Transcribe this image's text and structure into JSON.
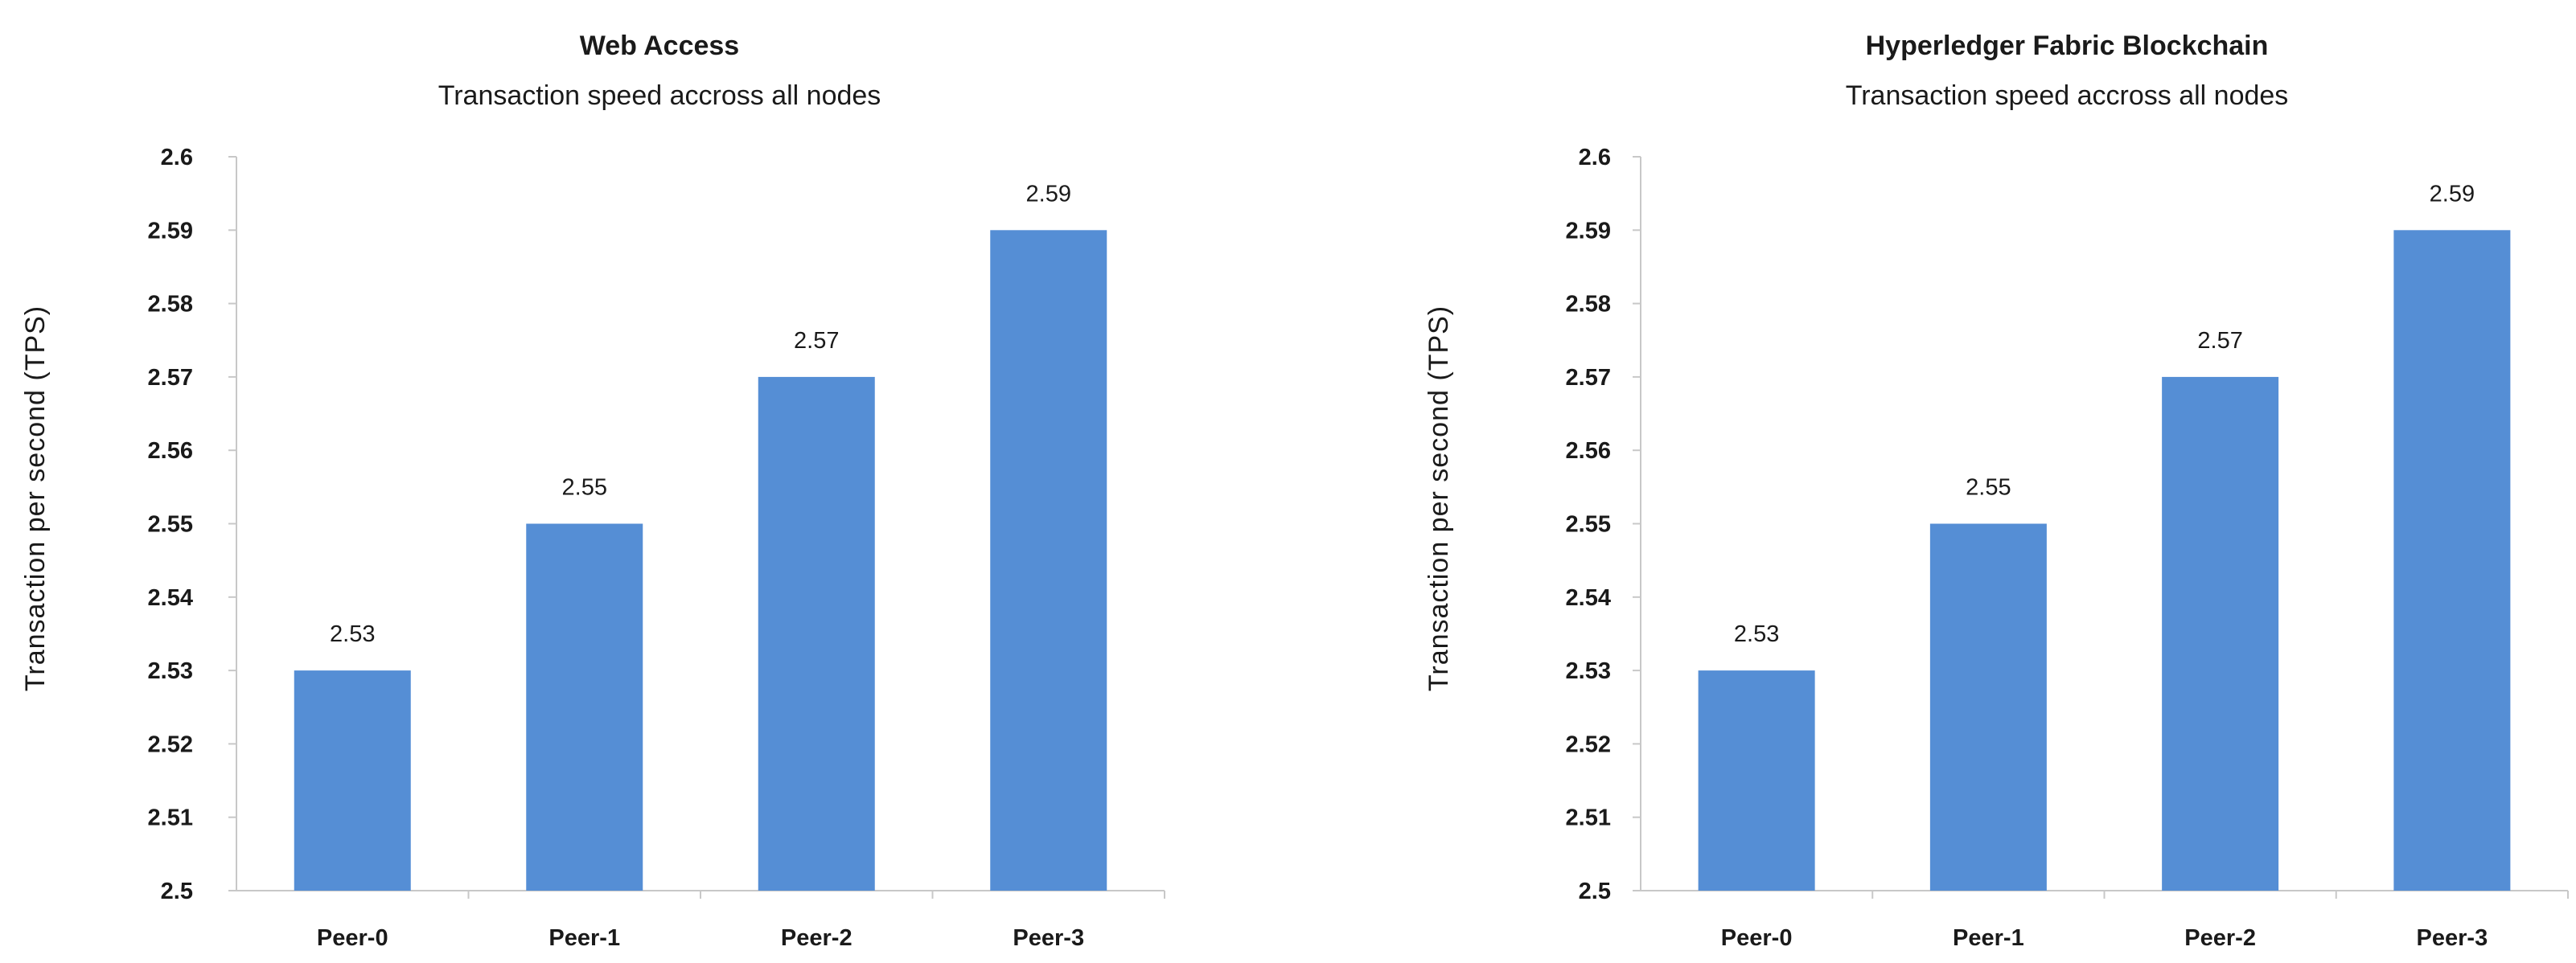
{
  "chart_data": [
    {
      "type": "bar",
      "title": "Web Access",
      "subtitle": "Transaction speed accross all nodes",
      "xlabel": "",
      "ylabel": "Transaction per second (TPS)",
      "categories": [
        "Peer-0",
        "Peer-1",
        "Peer-2",
        "Peer-3"
      ],
      "values": [
        2.53,
        2.55,
        2.57,
        2.59
      ],
      "data_labels": [
        "2.53",
        "2.55",
        "2.57",
        "2.59"
      ],
      "ylim": [
        2.5,
        2.6
      ],
      "yticks": [
        2.5,
        2.51,
        2.52,
        2.53,
        2.54,
        2.55,
        2.56,
        2.57,
        2.58,
        2.59,
        2.6
      ],
      "ytick_labels": [
        "2.5",
        "2.51",
        "2.52",
        "2.53",
        "2.54",
        "2.55",
        "2.56",
        "2.57",
        "2.58",
        "2.59",
        "2.6"
      ],
      "grid": false,
      "legend": "none",
      "bar_color": "#558ed5"
    },
    {
      "type": "bar",
      "title": "Hyperledger Fabric Blockchain",
      "subtitle": "Transaction speed accross all nodes",
      "xlabel": "",
      "ylabel": "Transaction per second (TPS)",
      "categories": [
        "Peer-0",
        "Peer-1",
        "Peer-2",
        "Peer-3"
      ],
      "values": [
        2.53,
        2.55,
        2.57,
        2.59
      ],
      "data_labels": [
        "2.53",
        "2.55",
        "2.57",
        "2.59"
      ],
      "ylim": [
        2.5,
        2.6
      ],
      "yticks": [
        2.5,
        2.51,
        2.52,
        2.53,
        2.54,
        2.55,
        2.56,
        2.57,
        2.58,
        2.59,
        2.6
      ],
      "ytick_labels": [
        "2.5",
        "2.51",
        "2.52",
        "2.53",
        "2.54",
        "2.55",
        "2.56",
        "2.57",
        "2.58",
        "2.59",
        "2.6"
      ],
      "grid": false,
      "legend": "none",
      "bar_color": "#558ed5"
    }
  ]
}
